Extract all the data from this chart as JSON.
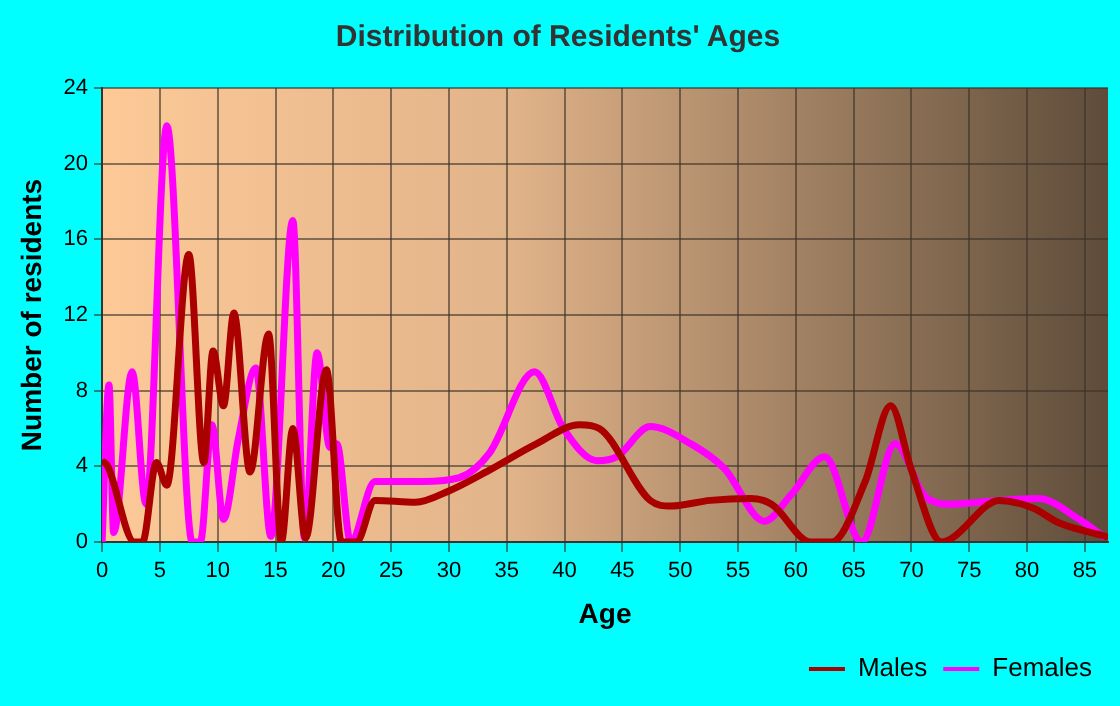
{
  "chart_data": {
    "type": "line",
    "title": "Distribution of Residents' Ages",
    "xlabel": "Age",
    "ylabel": "Number of residents",
    "xlim": [
      0,
      87
    ],
    "xticks": [
      0,
      5,
      10,
      15,
      20,
      25,
      30,
      35,
      40,
      45,
      50,
      55,
      60,
      65,
      70,
      75,
      80,
      85
    ],
    "ylim": [
      0,
      24
    ],
    "yticks": [
      0,
      4,
      8,
      12,
      16,
      20,
      24
    ],
    "grid": true,
    "legend": "bottom right",
    "marker": "none",
    "line_style": "solid",
    "series": [
      {
        "name": "Males",
        "color": "#aa0000",
        "x": [
          0.2,
          0.5,
          2.8,
          3.5,
          4.7,
          5.6,
          7.5,
          8.8,
          9.6,
          10.5,
          11.4,
          12.8,
          14.4,
          15.5,
          16.5,
          17.6,
          19.4,
          20.7,
          22,
          23.6,
          27.1,
          30,
          33.5,
          37.6,
          41.3,
          43,
          47.4,
          49.2,
          52.6,
          56.1,
          57.9,
          61.3,
          63.1,
          66,
          68.2,
          70,
          72.6,
          73.5,
          77.6,
          80.5,
          82.8,
          86.8
        ],
        "values": [
          4.2,
          4,
          0,
          0,
          4.2,
          3,
          15.2,
          4.2,
          10.1,
          7.2,
          12.1,
          3.7,
          11,
          0,
          6,
          0.2,
          9.1,
          0,
          0,
          2.2,
          2.1,
          2.7,
          3.8,
          5.2,
          6.2,
          6,
          2.2,
          1.9,
          2.2,
          2.3,
          2,
          0,
          0,
          3.2,
          7.2,
          3.8,
          0,
          0.2,
          2.2,
          1.8,
          1,
          0.3
        ]
      },
      {
        "name": "Females",
        "color": "#ff00ff",
        "x": [
          0,
          0.6,
          1,
          2.6,
          3.8,
          5.6,
          7.8,
          8.5,
          9.5,
          10.5,
          11.8,
          13.3,
          14.6,
          16.5,
          17.5,
          18.6,
          19.7,
          20.3,
          21.5,
          23.6,
          27.7,
          30.9,
          33.5,
          37.4,
          39.9,
          42.8,
          44.5,
          47.4,
          50.9,
          53.8,
          57.3,
          59.6,
          62.5,
          65.7,
          68.6,
          71.2,
          73.5,
          77.6,
          81,
          84.5,
          86.6
        ],
        "values": [
          0,
          8.3,
          0.5,
          9,
          2,
          22,
          0,
          0,
          6.2,
          1.2,
          5.5,
          9.2,
          0.3,
          17,
          0.2,
          10,
          5,
          5.2,
          0,
          3.2,
          3.2,
          3.4,
          4.7,
          9,
          6,
          4.3,
          4.5,
          6.1,
          5.2,
          3.9,
          1.1,
          2.5,
          4.5,
          0,
          5.2,
          2.4,
          2,
          2.2,
          2.3,
          1.2,
          0.3
        ]
      }
    ]
  }
}
